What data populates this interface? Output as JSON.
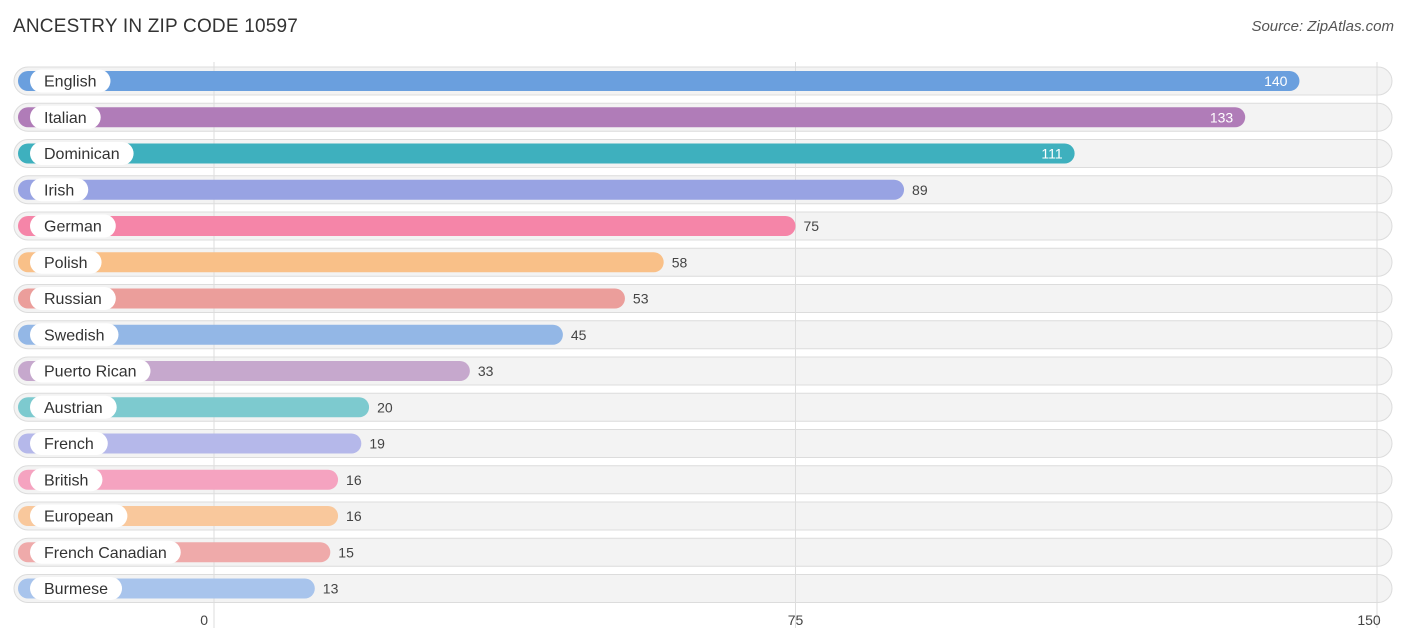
{
  "header": {
    "title": "ANCESTRY IN ZIP CODE 10597",
    "source": "Source: ZipAtlas.com"
  },
  "chart_data": {
    "type": "bar",
    "orientation": "horizontal",
    "categories": [
      "English",
      "Italian",
      "Dominican",
      "Irish",
      "German",
      "Polish",
      "Russian",
      "Swedish",
      "Puerto Rican",
      "Austrian",
      "French",
      "British",
      "European",
      "French Canadian",
      "Burmese"
    ],
    "values": [
      140,
      133,
      111,
      89,
      75,
      58,
      53,
      45,
      33,
      20,
      19,
      16,
      16,
      15,
      13
    ],
    "colors": [
      "#6a9fde",
      "#b07cb8",
      "#3eb0be",
      "#98a3e3",
      "#f585a8",
      "#f9c088",
      "#eb9e9b",
      "#93b7e6",
      "#c6a8cd",
      "#7dcacf",
      "#b5b8ea",
      "#f5a3c0",
      "#f9c89c",
      "#efaaaa",
      "#a8c4ec"
    ],
    "xticks": [
      0,
      75,
      150
    ],
    "xlim": [
      0,
      150
    ],
    "grid": true,
    "legend": "none"
  }
}
